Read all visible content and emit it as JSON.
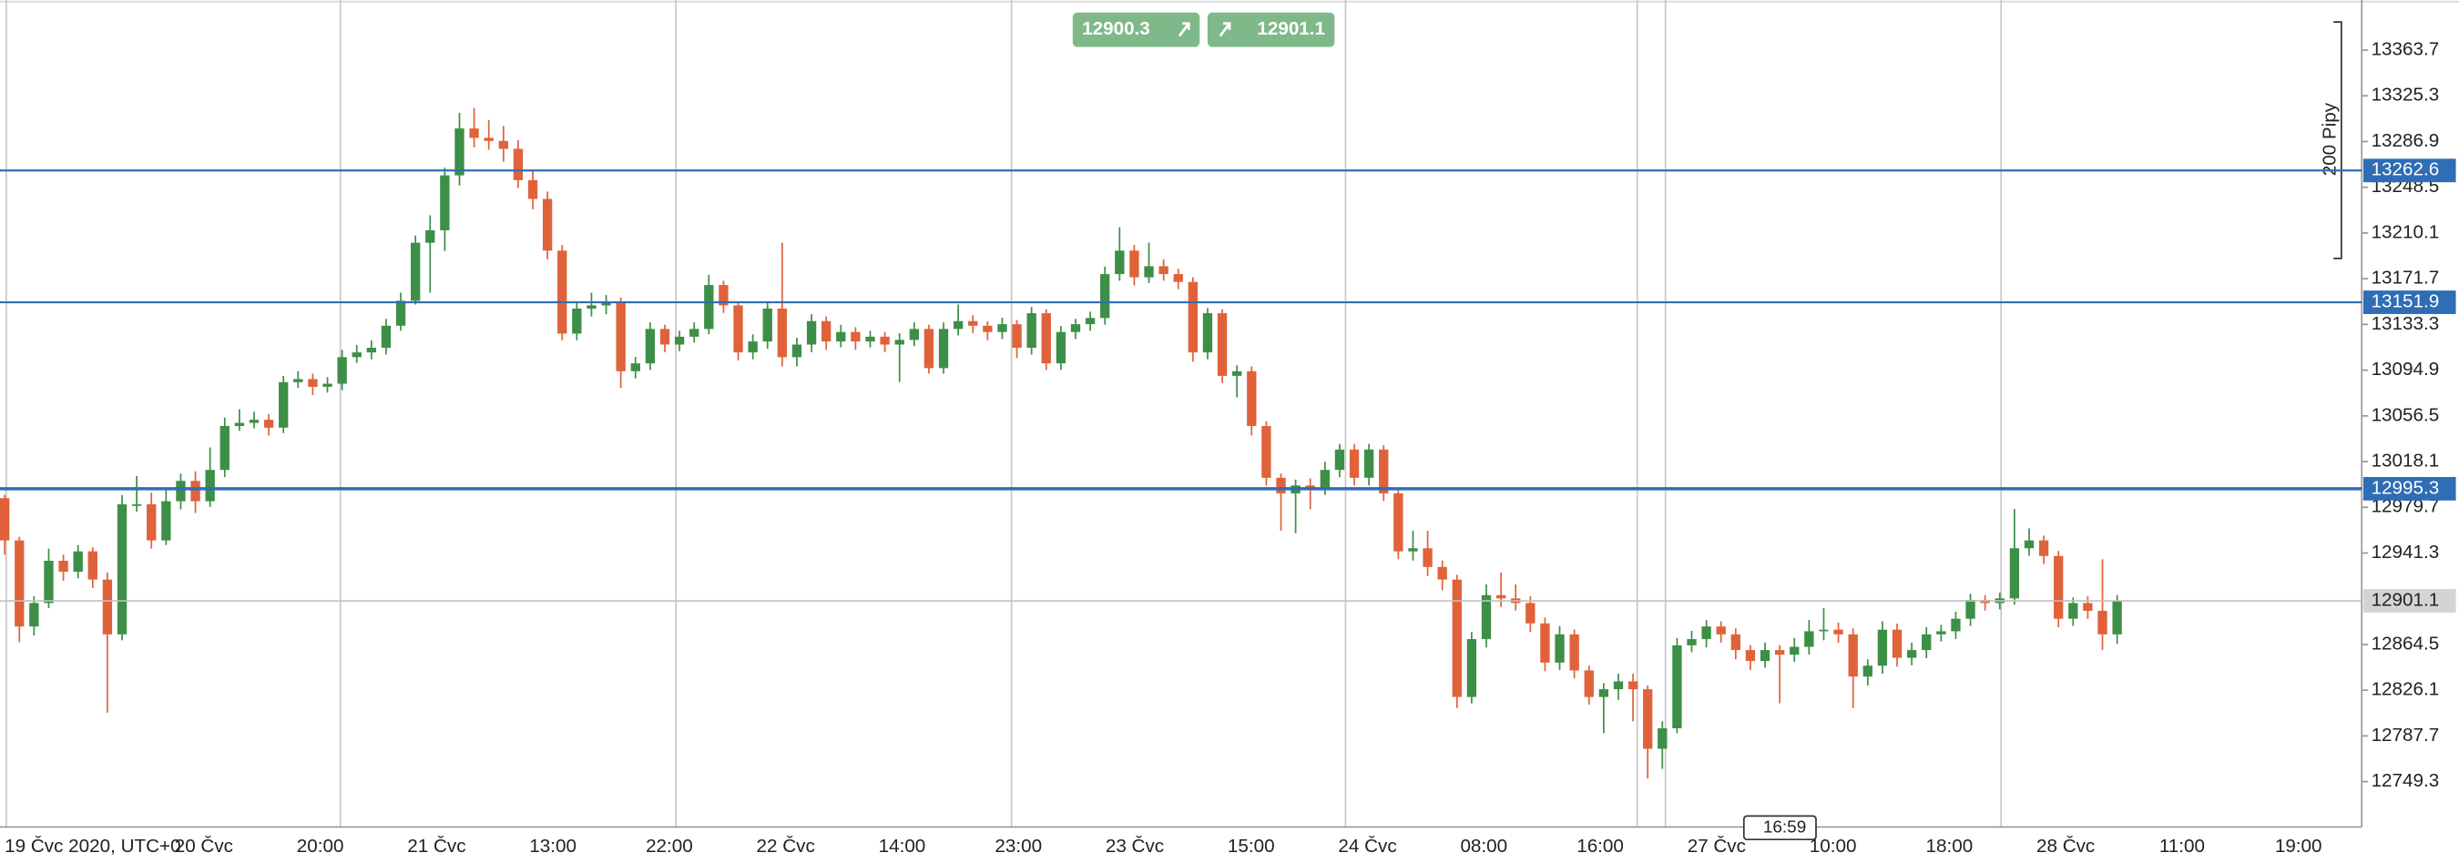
{
  "chart_data": {
    "type": "candlestick",
    "up_color": "#3d8f47",
    "down_color": "#e0623a",
    "ylim": [
      12711.2,
      13405.8
    ],
    "yticks": [
      13363.7,
      13325.3,
      13286.9,
      13248.5,
      13210.1,
      13171.7,
      13133.3,
      13094.9,
      13056.5,
      13018.1,
      12979.7,
      12941.3,
      12864.5,
      12826.1,
      12787.7,
      12749.3
    ],
    "xlabels": [
      "19 Čvc 2020, UTC+0",
      "20 Čvc",
      "20:00",
      "21 Čvc",
      "13:00",
      "22:00",
      "22 Čvc",
      "14:00",
      "23:00",
      "23 Čvc",
      "15:00",
      "24 Čvc",
      "08:00",
      "16:00",
      "27 Čvc",
      "10:00",
      "18:00",
      "28 Čvc",
      "11:00",
      "19:00"
    ],
    "levels": [
      13262.6,
      13151.9,
      12995.3
    ],
    "level_color": "#2f6db5",
    "current_price": 12901.1,
    "sell_price": 12900.3,
    "buy_price": 12901.1,
    "measure_label": "200 Pipy",
    "cursor_time": "16:59",
    "open": [
      12987.4,
      12951.9,
      12879.6,
      12899.3,
      12934.8,
      12925.6,
      12942.7,
      12919.0,
      12873.0,
      12982.2,
      12982.2,
      12951.9,
      12984.8,
      13001.9,
      12984.8,
      13011.1,
      13048.0,
      13050.6,
      13053.2,
      13046.6,
      13084.8,
      13087.4,
      13080.9,
      13083.5,
      13105.8,
      13109.8,
      13113.7,
      13132.2,
      13153.2,
      13201.9,
      13212.4,
      13258.5,
      13297.9,
      13290.0,
      13287.4,
      13280.8,
      13254.5,
      13238.7,
      13195.3,
      13125.6,
      13146.6,
      13149.3,
      13151.9,
      13094.0,
      13100.6,
      13129.5,
      13116.4,
      13123.0,
      13129.5,
      13166.4,
      13149.3,
      13109.8,
      13119.0,
      13146.6,
      13105.8,
      13116.4,
      13136.1,
      13119.0,
      13126.9,
      13119.0,
      13123.0,
      13116.4,
      13120.3,
      13129.5,
      13096.6,
      13129.5,
      13136.1,
      13132.2,
      13126.9,
      13133.5,
      13113.7,
      13142.7,
      13100.6,
      13126.9,
      13133.5,
      13138.7,
      13175.6,
      13195.3,
      13172.9,
      13182.2,
      13175.6,
      13169.0,
      13109.8,
      13142.7,
      13090.1,
      13094.0,
      13048.0,
      13004.5,
      12991.4,
      12998.0,
      12995.3,
      13011.1,
      13028.2,
      13004.5,
      13028.2,
      12991.4,
      12942.7,
      12945.3,
      12929.6,
      12919.0,
      12820.4,
      12869.0,
      12905.9,
      12903.2,
      12899.3,
      12882.2,
      12849.3,
      12873.0,
      12842.7,
      12820.4,
      12826.9,
      12833.5,
      12826.9,
      12776.9,
      12794.1,
      12863.8,
      12869.0,
      12879.6,
      12873.0,
      12859.8,
      12850.6,
      12859.8,
      12855.9,
      12862.5,
      12875.6,
      12876.9,
      12873.0,
      12837.5,
      12846.7,
      12876.9,
      12853.3,
      12859.8,
      12873.0,
      12875.6,
      12886.1,
      12901.9,
      12899.3,
      12903.2,
      12945.3,
      12951.9,
      12938.8,
      12886.1,
      12899.3,
      12892.7,
      12873.0
    ],
    "high": [
      12990.0,
      12955.0,
      12905.0,
      12945.0,
      12940.0,
      12948.0,
      12946.0,
      12925.0,
      12990.0,
      13006.0,
      12992.0,
      12995.0,
      13008.0,
      13010.0,
      13030.0,
      13055.0,
      13062.0,
      13060.0,
      13058.0,
      13090.0,
      13094.0,
      13092.0,
      13089.0,
      13112.0,
      13116.0,
      13120.0,
      13138.0,
      13160.0,
      13208.0,
      13225.0,
      13265.0,
      13311.1,
      13315.0,
      13305.0,
      13300.0,
      13288.0,
      13262.0,
      13245.0,
      13200.0,
      13152.0,
      13160.0,
      13158.0,
      13156.0,
      13106.0,
      13135.0,
      13133.0,
      13128.0,
      13135.0,
      13175.0,
      13170.0,
      13152.0,
      13125.0,
      13152.0,
      13201.9,
      13122.0,
      13142.0,
      13140.0,
      13133.0,
      13131.0,
      13128.0,
      13127.0,
      13126.0,
      13135.0,
      13133.0,
      13135.0,
      13150.0,
      13141.0,
      13136.0,
      13139.0,
      13137.0,
      13148.0,
      13146.0,
      13132.0,
      13138.0,
      13144.0,
      13182.0,
      13215.0,
      13200.0,
      13202.0,
      13188.0,
      13180.0,
      13173.0,
      13147.0,
      13146.0,
      13099.0,
      13098.0,
      13052.0,
      13008.0,
      13003.0,
      13004.0,
      13018.0,
      13033.0,
      13033.0,
      13033.0,
      13032.0,
      12996.0,
      12960.0,
      12960.0,
      12935.0,
      12923.0,
      12875.0,
      12915.0,
      12925.0,
      12915.0,
      12905.0,
      12887.0,
      12880.0,
      12877.0,
      12847.0,
      12832.0,
      12840.0,
      12840.0,
      12830.0,
      12800.0,
      12870.0,
      12876.0,
      12885.0,
      12884.0,
      12878.0,
      12864.0,
      12866.0,
      12864.0,
      12870.0,
      12885.0,
      12895.0,
      12883.0,
      12878.0,
      12852.0,
      12884.0,
      12882.0,
      12866.0,
      12879.0,
      12881.0,
      12892.0,
      12907.0,
      12906.0,
      12908.0,
      12978.2,
      12962.0,
      12956.0,
      12943.0,
      12904.0,
      12905.0,
      12936.1,
      12906.0
    ],
    "low": [
      12940.0,
      12866.4,
      12872.0,
      12895.0,
      12918.0,
      12920.0,
      12912.0,
      12807.2,
      12868.0,
      12976.0,
      12945.0,
      12948.0,
      12978.0,
      12975.0,
      12980.0,
      13005.0,
      13044.0,
      13046.0,
      13040.0,
      13042.0,
      13080.0,
      13074.0,
      13076.0,
      13078.0,
      13101.0,
      13104.0,
      13108.0,
      13128.0,
      13150.0,
      13160.0,
      13195.0,
      13250.0,
      13282.0,
      13280.0,
      13270.0,
      13248.0,
      13230.0,
      13188.0,
      13120.0,
      13120.0,
      13140.0,
      13142.0,
      13080.0,
      13088.0,
      13095.0,
      13110.0,
      13111.0,
      13118.0,
      13125.0,
      13143.0,
      13103.0,
      13104.0,
      13113.0,
      13098.0,
      13098.0,
      13110.0,
      13112.0,
      13114.0,
      13112.0,
      13114.0,
      13110.0,
      13085.0,
      13115.0,
      13092.0,
      13092.0,
      13124.0,
      13126.0,
      13120.0,
      13121.0,
      13105.0,
      13108.0,
      13095.0,
      13095.0,
      13121.0,
      13128.0,
      13133.0,
      13170.0,
      13166.0,
      13168.0,
      13170.0,
      13163.0,
      13102.0,
      13104.0,
      13084.0,
      13072.0,
      13040.0,
      12998.0,
      12960.0,
      12958.0,
      12978.0,
      12990.0,
      13005.0,
      12998.0,
      12998.0,
      12985.0,
      12936.0,
      12935.0,
      12922.0,
      12910.0,
      12811.1,
      12815.0,
      12862.0,
      12896.0,
      12893.0,
      12875.0,
      12842.0,
      12843.0,
      12836.0,
      12814.0,
      12790.0,
      12818.0,
      12800.0,
      12752.0,
      12760.0,
      12790.0,
      12858.0,
      12862.0,
      12866.0,
      12852.0,
      12843.0,
      12845.0,
      12815.0,
      12850.0,
      12856.0,
      12868.0,
      12866.0,
      12811.0,
      12830.0,
      12840.0,
      12846.0,
      12847.0,
      12853.0,
      12867.0,
      12869.0,
      12880.0,
      12893.0,
      12894.0,
      12898.0,
      12939.0,
      12932.0,
      12879.0,
      12880.0,
      12886.0,
      12860.0,
      12865.0
    ],
    "close": [
      12951.9,
      12879.6,
      12899.3,
      12934.8,
      12925.6,
      12942.7,
      12919.0,
      12873.0,
      12982.2,
      12982.2,
      12951.9,
      12984.8,
      13001.9,
      12984.8,
      13011.1,
      13048.0,
      13050.6,
      13053.2,
      13046.6,
      13084.8,
      13087.4,
      13080.9,
      13083.5,
      13105.8,
      13109.8,
      13113.7,
      13132.2,
      13153.2,
      13201.9,
      13212.4,
      13258.5,
      13297.9,
      13290.0,
      13287.4,
      13280.8,
      13254.5,
      13238.7,
      13195.3,
      13125.6,
      13146.6,
      13149.3,
      13151.9,
      13094.0,
      13100.6,
      13129.5,
      13116.4,
      13123.0,
      13129.5,
      13166.4,
      13149.3,
      13109.8,
      13119.0,
      13146.6,
      13105.8,
      13116.4,
      13136.1,
      13119.0,
      13126.9,
      13119.0,
      13123.0,
      13116.4,
      13120.3,
      13129.5,
      13096.6,
      13129.5,
      13136.1,
      13132.2,
      13126.9,
      13133.5,
      13113.7,
      13142.7,
      13100.6,
      13126.9,
      13133.5,
      13138.7,
      13175.6,
      13195.3,
      13172.9,
      13182.2,
      13175.6,
      13169.0,
      13109.8,
      13142.7,
      13090.1,
      13094.0,
      13048.0,
      13004.5,
      12991.4,
      12998.0,
      12995.3,
      13011.1,
      13028.2,
      13004.5,
      13028.2,
      12991.4,
      12942.7,
      12945.3,
      12929.6,
      12919.0,
      12820.4,
      12869.0,
      12905.9,
      12903.2,
      12899.3,
      12882.2,
      12849.3,
      12873.0,
      12842.7,
      12820.4,
      12826.9,
      12833.5,
      12826.9,
      12776.9,
      12794.1,
      12863.8,
      12869.0,
      12879.6,
      12873.0,
      12859.8,
      12850.6,
      12859.8,
      12855.9,
      12862.5,
      12875.6,
      12876.9,
      12873.0,
      12837.5,
      12846.7,
      12876.9,
      12853.3,
      12859.8,
      12873.0,
      12875.6,
      12886.1,
      12901.9,
      12899.3,
      12903.2,
      12945.3,
      12951.9,
      12938.8,
      12886.1,
      12899.3,
      12892.7,
      12873.0,
      12901.1
    ]
  }
}
